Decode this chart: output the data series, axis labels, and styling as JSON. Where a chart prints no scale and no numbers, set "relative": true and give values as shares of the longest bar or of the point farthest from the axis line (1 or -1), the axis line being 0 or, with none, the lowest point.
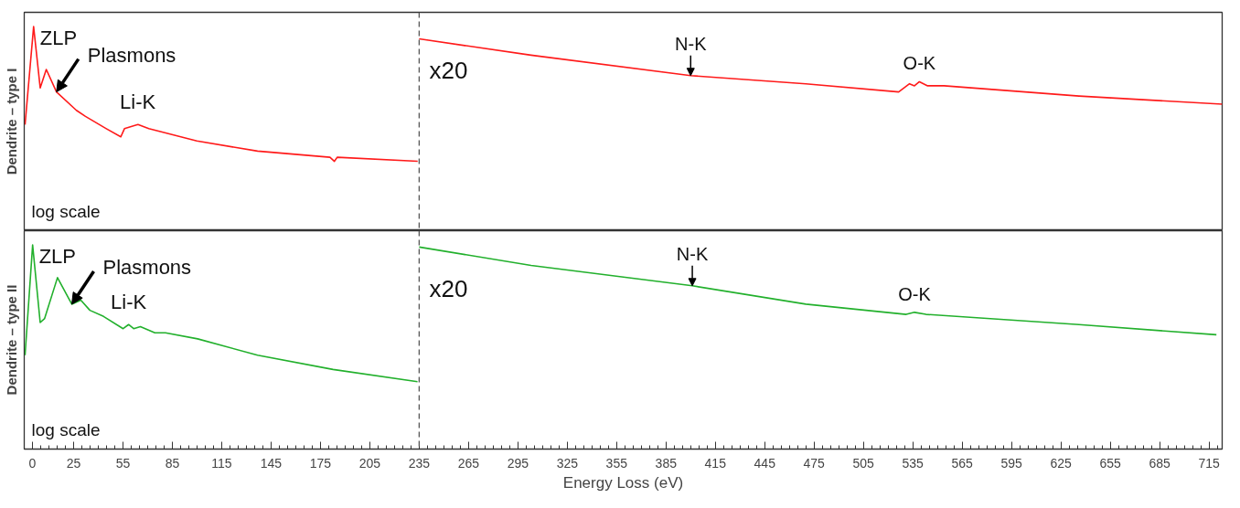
{
  "chart_data": [
    {
      "type": "line",
      "relative": true,
      "ylabel": "Dendrite – type I",
      "xlim": [
        -5,
        723
      ],
      "tick_labels": false,
      "grid": false,
      "x": [
        -4.5,
        0.7,
        4.7,
        8.4,
        14.6,
        26.7,
        32.2,
        44.9,
        53.7,
        55.9,
        64.1,
        70.7,
        99.9,
        136.8,
        180.8,
        183.5,
        185.2,
        234.1,
        234.5,
        235,
        303,
        400,
        470,
        526.4,
        533,
        536,
        539,
        544,
        554,
        636,
        723
      ],
      "series": [
        {
          "color": "#ff1a1a",
          "values": [
            0.52,
            1.0,
            0.7,
            0.79,
            0.68,
            0.59,
            0.56,
            0.5,
            0.46,
            0.5,
            0.52,
            0.5,
            0.44,
            0.39,
            0.36,
            0.34,
            0.36,
            0.34,
            null,
            0.94,
            0.86,
            0.76,
            0.72,
            0.68,
            0.72,
            0.71,
            0.73,
            0.71,
            0.71,
            0.66,
            0.62
          ]
        }
      ],
      "ref_lines": [
        {
          "axis": "x",
          "value": 235,
          "color": "#555555",
          "line_style": "dashed"
        }
      ],
      "annotations": [
        {
          "text": "ZLP",
          "x": 0.7,
          "y": 1.0
        },
        {
          "text": "Plasmons",
          "x": 14.6,
          "y": 0.68
        },
        {
          "text": "Li-K",
          "x": 64,
          "y": 0.52
        },
        {
          "text": "N-K",
          "x": 400,
          "y": 0.76
        },
        {
          "text": "O-K",
          "x": 539,
          "y": 0.73
        },
        "x20",
        "log scale"
      ]
    },
    {
      "type": "line",
      "relative": true,
      "ylabel": "Dendrite – type II",
      "xlabel": "Energy Loss (eV)",
      "xlim": [
        -5,
        723
      ],
      "grid": false,
      "tick_labels": "x",
      "xticks": [
        0,
        25,
        55,
        85,
        115,
        145,
        175,
        205,
        235,
        265,
        295,
        325,
        355,
        385,
        415,
        445,
        475,
        505,
        535,
        565,
        595,
        625,
        655,
        685,
        715,
        {
          "value": 5,
          "label": null
        },
        {
          "value": 10,
          "label": null
        },
        {
          "value": 15,
          "label": null
        },
        {
          "value": 20,
          "label": null
        },
        {
          "value": 30,
          "label": null
        },
        {
          "value": 35,
          "label": null
        },
        {
          "value": 40,
          "label": null
        },
        {
          "value": 45,
          "label": null
        },
        {
          "value": 50,
          "label": null
        },
        {
          "value": 60,
          "label": null
        },
        {
          "value": 65,
          "label": null
        },
        {
          "value": 70,
          "label": null
        },
        {
          "value": 75,
          "label": null
        },
        {
          "value": 80,
          "label": null
        },
        {
          "value": 90,
          "label": null
        },
        {
          "value": 95,
          "label": null
        },
        {
          "value": 100,
          "label": null
        },
        {
          "value": 105,
          "label": null
        },
        {
          "value": 110,
          "label": null
        },
        {
          "value": 120,
          "label": null
        },
        {
          "value": 125,
          "label": null
        },
        {
          "value": 130,
          "label": null
        },
        {
          "value": 135,
          "label": null
        },
        {
          "value": 140,
          "label": null
        },
        {
          "value": 150,
          "label": null
        },
        {
          "value": 155,
          "label": null
        },
        {
          "value": 160,
          "label": null
        },
        {
          "value": 165,
          "label": null
        },
        {
          "value": 170,
          "label": null
        },
        {
          "value": 180,
          "label": null
        },
        {
          "value": 185,
          "label": null
        },
        {
          "value": 190,
          "label": null
        },
        {
          "value": 195,
          "label": null
        },
        {
          "value": 200,
          "label": null
        },
        {
          "value": 210,
          "label": null
        },
        {
          "value": 215,
          "label": null
        },
        {
          "value": 220,
          "label": null
        },
        {
          "value": 225,
          "label": null
        },
        {
          "value": 230,
          "label": null
        },
        {
          "value": 240,
          "label": null
        },
        {
          "value": 245,
          "label": null
        },
        {
          "value": 250,
          "label": null
        },
        {
          "value": 255,
          "label": null
        },
        {
          "value": 260,
          "label": null
        },
        {
          "value": 270,
          "label": null
        },
        {
          "value": 275,
          "label": null
        },
        {
          "value": 280,
          "label": null
        },
        {
          "value": 285,
          "label": null
        },
        {
          "value": 290,
          "label": null
        },
        {
          "value": 300,
          "label": null
        },
        {
          "value": 305,
          "label": null
        },
        {
          "value": 310,
          "label": null
        },
        {
          "value": 315,
          "label": null
        },
        {
          "value": 320,
          "label": null
        },
        {
          "value": 330,
          "label": null
        },
        {
          "value": 335,
          "label": null
        },
        {
          "value": 340,
          "label": null
        },
        {
          "value": 345,
          "label": null
        },
        {
          "value": 350,
          "label": null
        },
        {
          "value": 360,
          "label": null
        },
        {
          "value": 365,
          "label": null
        },
        {
          "value": 370,
          "label": null
        },
        {
          "value": 375,
          "label": null
        },
        {
          "value": 380,
          "label": null
        },
        {
          "value": 390,
          "label": null
        },
        {
          "value": 395,
          "label": null
        },
        {
          "value": 400,
          "label": null
        },
        {
          "value": 405,
          "label": null
        },
        {
          "value": 410,
          "label": null
        },
        {
          "value": 420,
          "label": null
        },
        {
          "value": 425,
          "label": null
        },
        {
          "value": 430,
          "label": null
        },
        {
          "value": 435,
          "label": null
        },
        {
          "value": 440,
          "label": null
        },
        {
          "value": 450,
          "label": null
        },
        {
          "value": 455,
          "label": null
        },
        {
          "value": 460,
          "label": null
        },
        {
          "value": 465,
          "label": null
        },
        {
          "value": 470,
          "label": null
        },
        {
          "value": 480,
          "label": null
        },
        {
          "value": 485,
          "label": null
        },
        {
          "value": 490,
          "label": null
        },
        {
          "value": 495,
          "label": null
        },
        {
          "value": 500,
          "label": null
        },
        {
          "value": 510,
          "label": null
        },
        {
          "value": 515,
          "label": null
        },
        {
          "value": 520,
          "label": null
        },
        {
          "value": 525,
          "label": null
        },
        {
          "value": 530,
          "label": null
        },
        {
          "value": 540,
          "label": null
        },
        {
          "value": 545,
          "label": null
        },
        {
          "value": 550,
          "label": null
        },
        {
          "value": 555,
          "label": null
        },
        {
          "value": 560,
          "label": null
        },
        {
          "value": 570,
          "label": null
        },
        {
          "value": 575,
          "label": null
        },
        {
          "value": 580,
          "label": null
        },
        {
          "value": 585,
          "label": null
        },
        {
          "value": 590,
          "label": null
        },
        {
          "value": 600,
          "label": null
        },
        {
          "value": 605,
          "label": null
        },
        {
          "value": 610,
          "label": null
        },
        {
          "value": 615,
          "label": null
        },
        {
          "value": 620,
          "label": null
        },
        {
          "value": 630,
          "label": null
        },
        {
          "value": 635,
          "label": null
        },
        {
          "value": 640,
          "label": null
        },
        {
          "value": 645,
          "label": null
        },
        {
          "value": 650,
          "label": null
        },
        {
          "value": 660,
          "label": null
        },
        {
          "value": 665,
          "label": null
        },
        {
          "value": 670,
          "label": null
        },
        {
          "value": 675,
          "label": null
        },
        {
          "value": 680,
          "label": null
        },
        {
          "value": 690,
          "label": null
        },
        {
          "value": 695,
          "label": null
        },
        {
          "value": 700,
          "label": null
        },
        {
          "value": 705,
          "label": null
        },
        {
          "value": 710,
          "label": null
        },
        {
          "value": 720,
          "label": null
        }
      ],
      "x": [
        -4.5,
        0.1,
        4.7,
        7.4,
        15.2,
        23.9,
        29.4,
        34.9,
        43.2,
        55.1,
        58.4,
        61.5,
        65.6,
        74.4,
        80.8,
        100.4,
        136.8,
        182.7,
        234,
        234.5,
        235,
        303,
        401,
        470,
        531,
        536,
        543,
        636,
        719.5
      ],
      "series": [
        {
          "color": "#22b02c",
          "values": [
            0.46,
            1.0,
            0.62,
            0.64,
            0.84,
            0.71,
            0.73,
            0.68,
            0.65,
            0.59,
            0.61,
            0.59,
            0.6,
            0.57,
            0.57,
            0.54,
            0.46,
            0.39,
            0.33,
            null,
            0.99,
            0.9,
            0.8,
            0.71,
            0.66,
            0.67,
            0.66,
            0.61,
            0.56
          ]
        }
      ],
      "ref_lines": [
        {
          "axis": "x",
          "value": 235,
          "color": "#555555",
          "line_style": "dashed"
        }
      ],
      "annotations": [
        {
          "text": "ZLP",
          "x": 0.1,
          "y": 1.0
        },
        {
          "text": "Plasmons",
          "x": 23.9,
          "y": 0.71
        },
        {
          "text": "Li-K",
          "x": 58.4,
          "y": 0.61
        },
        {
          "text": "N-K",
          "x": 401,
          "y": 0.8
        },
        {
          "text": "O-K",
          "x": 536,
          "y": 0.67
        },
        "x20",
        "log scale"
      ]
    }
  ]
}
